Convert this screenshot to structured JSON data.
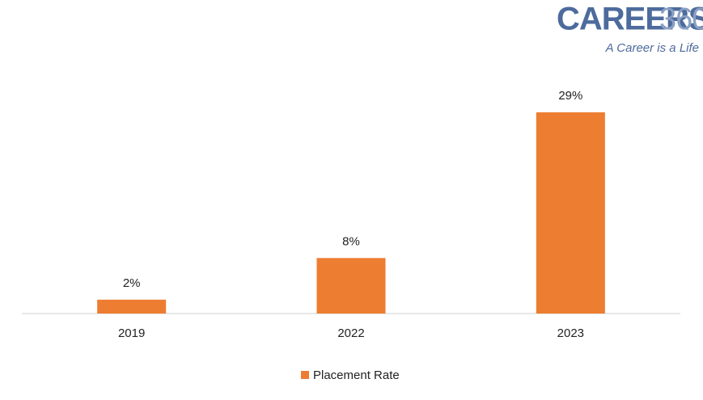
{
  "logo": {
    "brand": "CAREERS",
    "number": "360",
    "tagline": "A Career is a Life"
  },
  "chart_data": {
    "type": "bar",
    "categories": [
      "2019",
      "2022",
      "2023"
    ],
    "series": [
      {
        "name": "Placement Rate",
        "color": "#ed7d31",
        "values": [
          2,
          8,
          29
        ],
        "value_labels": [
          "2%",
          "8%",
          "29%"
        ]
      }
    ],
    "legend": "bottom"
  }
}
